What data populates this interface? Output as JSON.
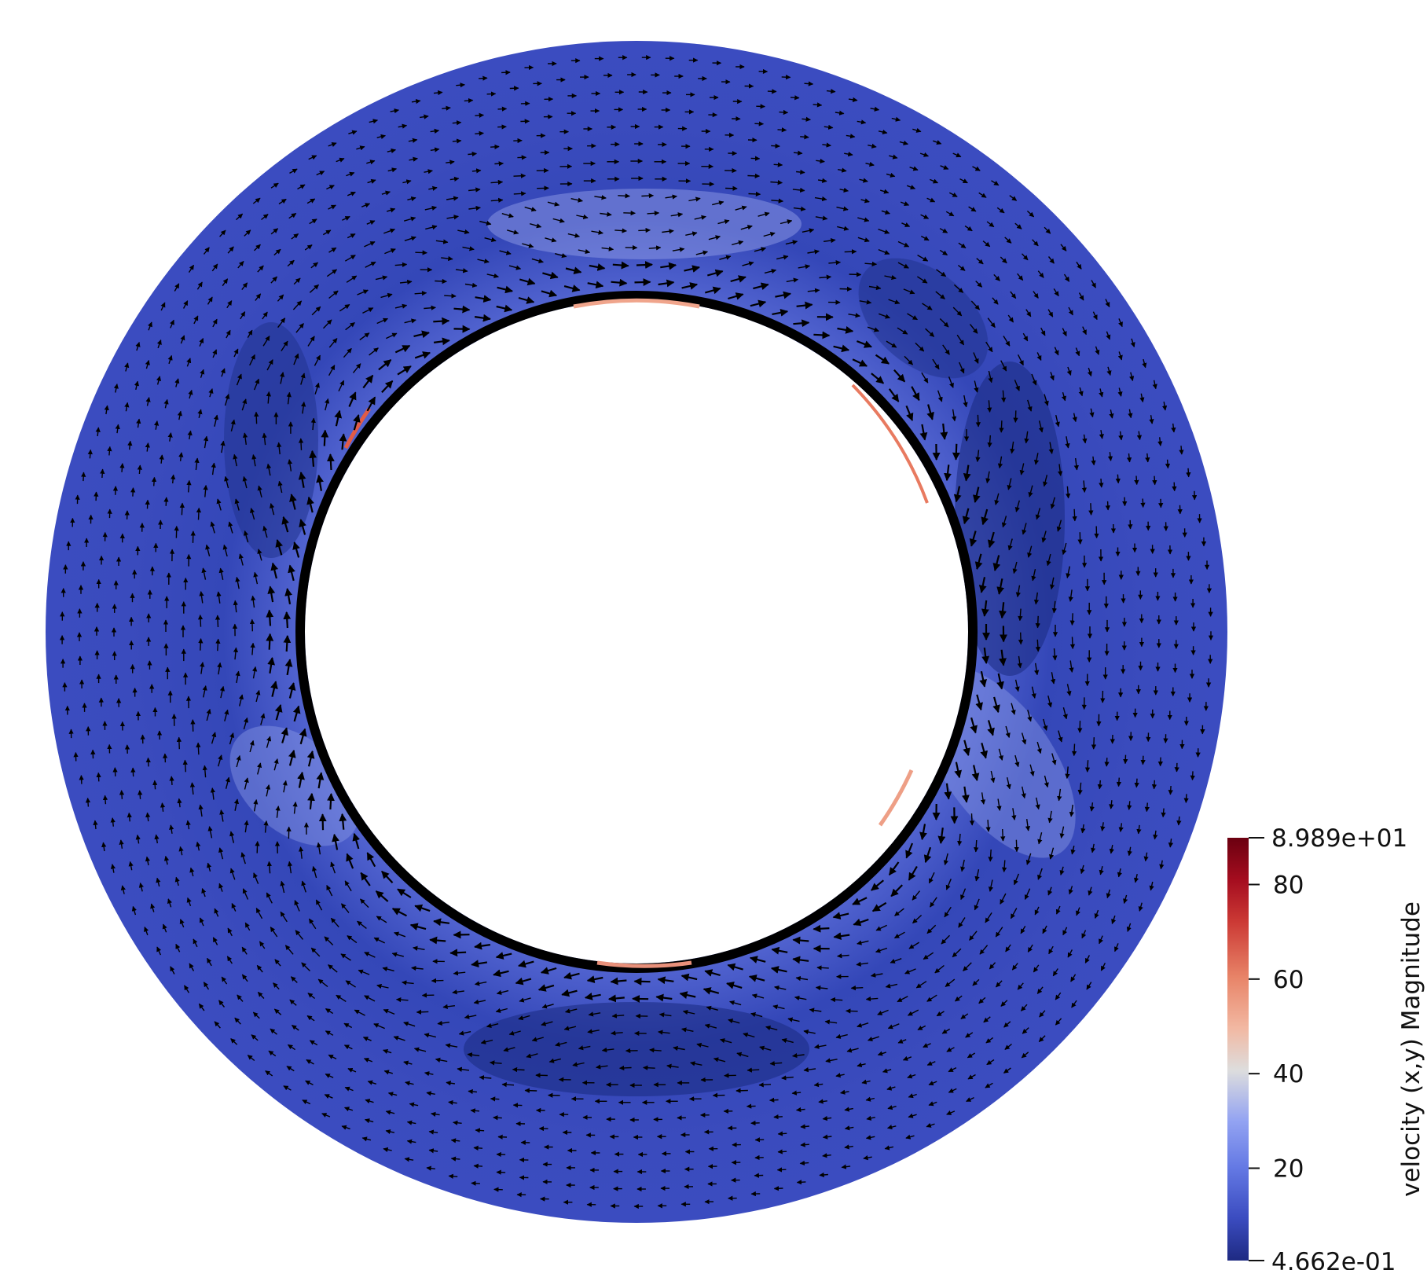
{
  "colors": {
    "background": "#ffffff",
    "field_base": "#3b4cc0",
    "field_dark": "#1f2f8a",
    "field_light": "#a9b3ea",
    "arrow": "#000000"
  },
  "colorbar": {
    "title": "velocity (x,y) Magnitude",
    "min_label": "4.662e-01",
    "max_label": "8.989e+01",
    "min_value": 0.4662,
    "max_value": 89.89,
    "ticks": [
      {
        "value": 20,
        "label": "20"
      },
      {
        "value": 40,
        "label": "40"
      },
      {
        "value": 60,
        "label": "60"
      },
      {
        "value": 80,
        "label": "80"
      }
    ],
    "colormap": "cool-to-warm",
    "colormap_stops": [
      "#1e2a82",
      "#3b4cc0",
      "#7b8ff0",
      "#b4c0f3",
      "#dddddd",
      "#f4b39a",
      "#e26952",
      "#b40426",
      "#6b0010"
    ]
  }
}
